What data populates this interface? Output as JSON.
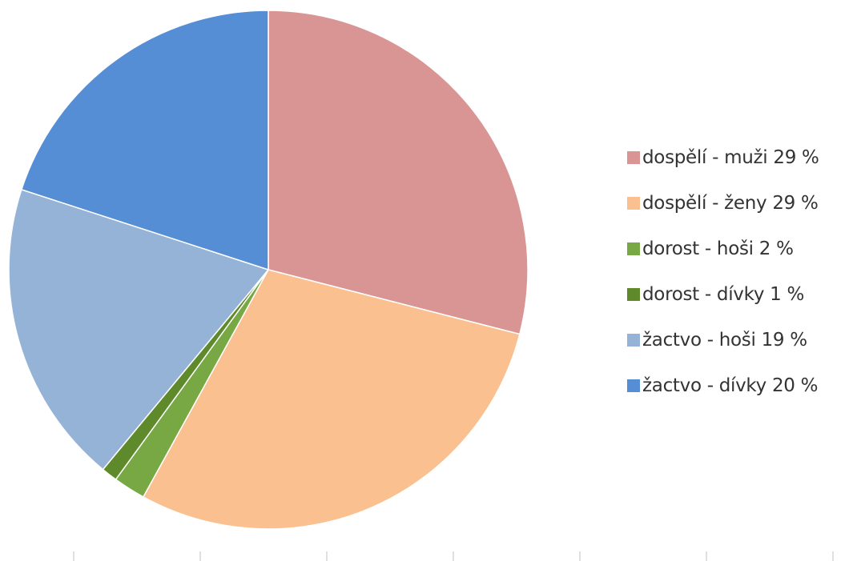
{
  "chart_data": {
    "type": "pie",
    "start_angle_deg": 0,
    "direction": "clockwise",
    "slices": [
      {
        "label": "dospělí - muži 29 %",
        "value": 29,
        "color": "#d99594"
      },
      {
        "label": "dospělí - ženy 29 %",
        "value": 29,
        "color": "#fac090"
      },
      {
        "label": "dorost - hoši 2 %",
        "value": 2,
        "color": "#77a843"
      },
      {
        "label": "dorost - dívky 1 %",
        "value": 1,
        "color": "#5e8a2c"
      },
      {
        "label": "žactvo - hoši 19 %",
        "value": 19,
        "color": "#95b3d7"
      },
      {
        "label": "žactvo - dívky 20 %",
        "value": 20,
        "color": "#558ed5"
      }
    ],
    "legend_position": "right"
  }
}
